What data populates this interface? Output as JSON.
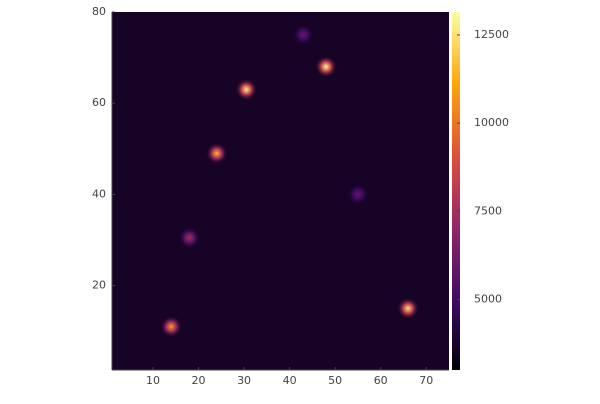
{
  "chart_data": {
    "type": "heatmap",
    "xlim": [
      1,
      75
    ],
    "ylim": [
      1.5,
      80
    ],
    "xticks": [
      10,
      20,
      30,
      40,
      50,
      60,
      70
    ],
    "yticks": [
      20,
      40,
      60,
      80
    ],
    "zlim": [
      3000,
      13150
    ],
    "zticks": [
      5000,
      7500,
      10000,
      12500
    ],
    "colormap": [
      "#000004",
      "#420a68",
      "#932667",
      "#dd513a",
      "#fca50a",
      "#fcffa4"
    ],
    "background": 3700,
    "sources": [
      {
        "x": 48,
        "y": 68,
        "peak": 13000
      },
      {
        "x": 30.5,
        "y": 63,
        "peak": 12800
      },
      {
        "x": 24,
        "y": 49,
        "peak": 11500
      },
      {
        "x": 66,
        "y": 15,
        "peak": 12500
      },
      {
        "x": 14,
        "y": 11,
        "peak": 11000
      },
      {
        "x": 18,
        "y": 30.5,
        "peak": 7500
      },
      {
        "x": 55,
        "y": 40,
        "peak": 6000
      },
      {
        "x": 43,
        "y": 75,
        "peak": 6000
      }
    ]
  }
}
